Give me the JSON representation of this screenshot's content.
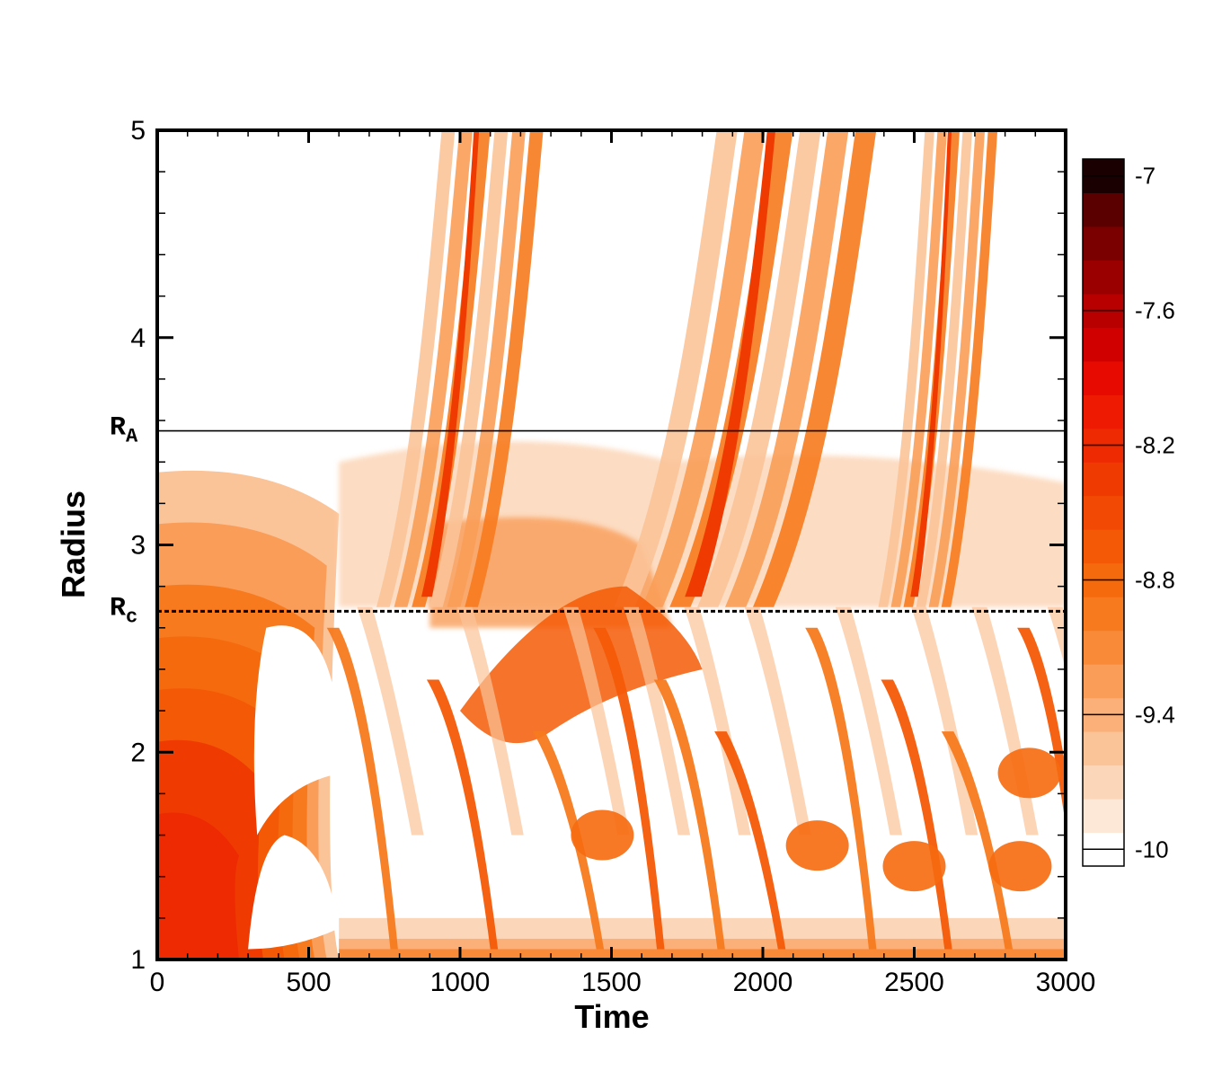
{
  "chart_data": {
    "type": "heatmap",
    "title": "",
    "xlabel": "Time",
    "ylabel": "Radius",
    "xlim": [
      0,
      3000
    ],
    "ylim": [
      1,
      5
    ],
    "x_ticks": [
      "0",
      "500",
      "1000",
      "1500",
      "2000",
      "2500",
      "3000"
    ],
    "y_ticks": [
      "1",
      "2",
      "3",
      "4",
      "5"
    ],
    "reference_lines": [
      {
        "label_main": "R",
        "label_sub": "A",
        "y": 3.55,
        "style": "solid"
      },
      {
        "label_main": "R",
        "label_sub": "c",
        "y": 2.68,
        "style": "dashed"
      }
    ],
    "colorbar": {
      "min": -10,
      "max": -7,
      "levels": 21,
      "tick_values": [
        -7,
        -7.6,
        -8.2,
        -8.8,
        -9.4,
        -10
      ],
      "tick_labels": [
        "-7",
        "-7.6",
        "-8.2",
        "-8.8",
        "-9.4",
        "-10"
      ],
      "colors_low_to_high": [
        "#ffffff",
        "#fde8d8",
        "#fcd6b8",
        "#fbc398",
        "#fab078",
        "#f99d58",
        "#f88a38",
        "#f77a1e",
        "#f66a0e",
        "#f45a06",
        "#f24a04",
        "#ef3a02",
        "#ee2a02",
        "#ee1a02",
        "#e60a00",
        "#d00000",
        "#b80000",
        "#9a0000",
        "#7a0000",
        "#5a0000",
        "#1a0000"
      ]
    },
    "features": {
      "background_level": -10,
      "base_band": {
        "y": [
          1.0,
          1.2
        ],
        "level": -9.6
      },
      "early_core": {
        "x": [
          0,
          600
        ],
        "y": [
          1.0,
          3.3
        ],
        "peak_level": -8.4
      },
      "outbursts_reaching_r5": [
        {
          "x": [
            750,
            1100
          ]
        },
        {
          "x": [
            1550,
            2100
          ]
        },
        {
          "x": [
            2400,
            2650
          ]
        }
      ],
      "infalling_streaks_t": [
        620,
        950,
        1300,
        1500,
        1700,
        1900,
        2200,
        2450,
        2650,
        2900
      ]
    }
  }
}
